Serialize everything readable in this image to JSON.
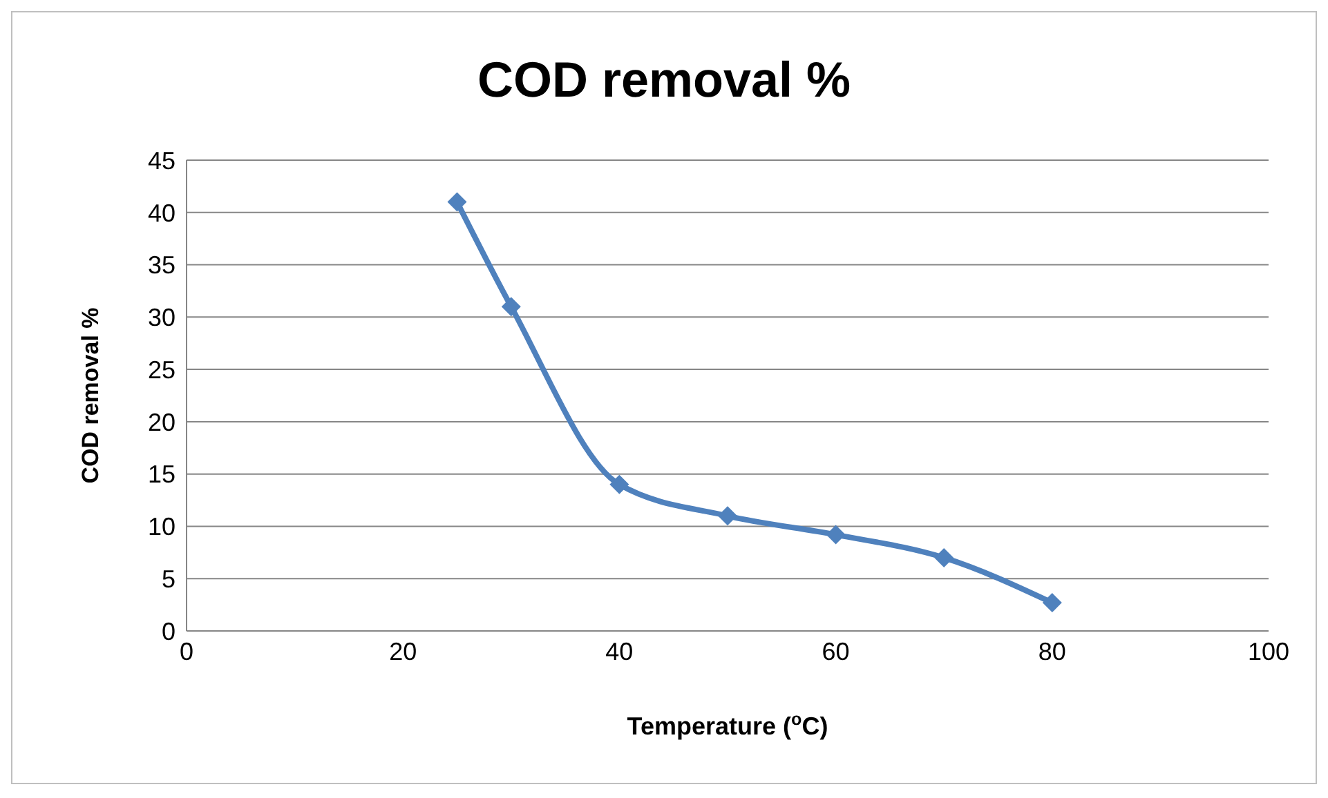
{
  "chart_data": {
    "type": "line",
    "title": "COD removal %",
    "xlabel": "Temperature ($^{o}$C)",
    "ylabel": "COD removal %",
    "x": [
      25,
      30,
      40,
      50,
      60,
      70,
      80
    ],
    "series": [
      {
        "color": "#4f81bd",
        "values": [
          41,
          31,
          14,
          11,
          9.2,
          7,
          2.7
        ]
      }
    ],
    "xlim": [
      0,
      100
    ],
    "xticks": [
      0,
      20,
      40,
      60,
      80,
      100
    ],
    "ylim": [
      0,
      45
    ],
    "yticks": [
      0,
      5,
      10,
      15,
      20,
      25,
      30,
      35,
      40,
      45
    ],
    "grid": "y",
    "marker": "diamond",
    "line_style": "solid",
    "legend": false
  }
}
